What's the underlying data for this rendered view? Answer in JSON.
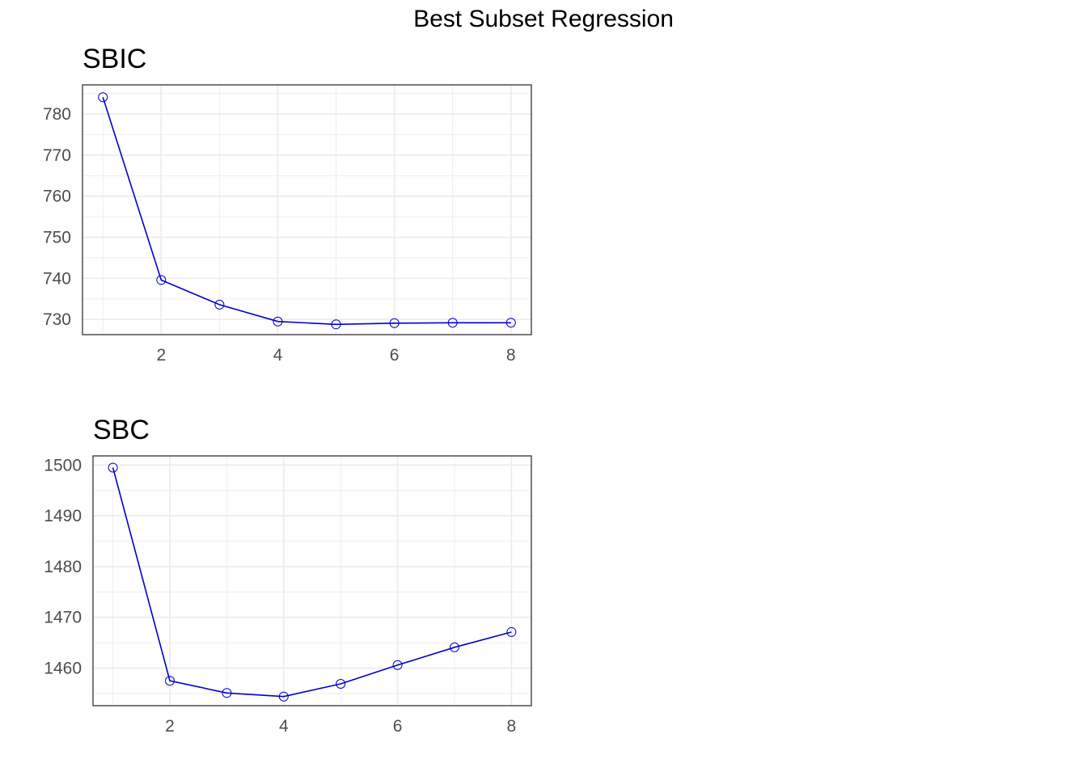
{
  "title": "Best Subset Regression",
  "chart_data": [
    {
      "type": "line",
      "title": "SBIC",
      "xlabel": "",
      "ylabel": "",
      "x": [
        1,
        2,
        3,
        4,
        5,
        6,
        7,
        8
      ],
      "values": [
        784.1,
        739.6,
        733.6,
        729.5,
        728.8,
        729.1,
        729.2,
        729.2
      ],
      "xlim": [
        0.65,
        8.35
      ],
      "ylim": [
        726.3,
        787.1
      ],
      "xticks": [
        2,
        4,
        6,
        8
      ],
      "yticks": [
        730,
        740,
        750,
        760,
        770,
        780
      ],
      "grid": true,
      "color": "#0000cc"
    },
    {
      "type": "line",
      "title": "SBC",
      "xlabel": "",
      "ylabel": "",
      "x": [
        1,
        2,
        3,
        4,
        5,
        6,
        7,
        8
      ],
      "values": [
        1499.5,
        1457.5,
        1455.1,
        1454.4,
        1456.9,
        1460.6,
        1464.1,
        1467.1
      ],
      "xlim": [
        0.65,
        8.35
      ],
      "ylim": [
        1452.6,
        1501.8
      ],
      "xticks": [
        2,
        4,
        6,
        8
      ],
      "yticks": [
        1460,
        1470,
        1480,
        1490,
        1500
      ],
      "grid": true,
      "color": "#0000cc"
    }
  ]
}
